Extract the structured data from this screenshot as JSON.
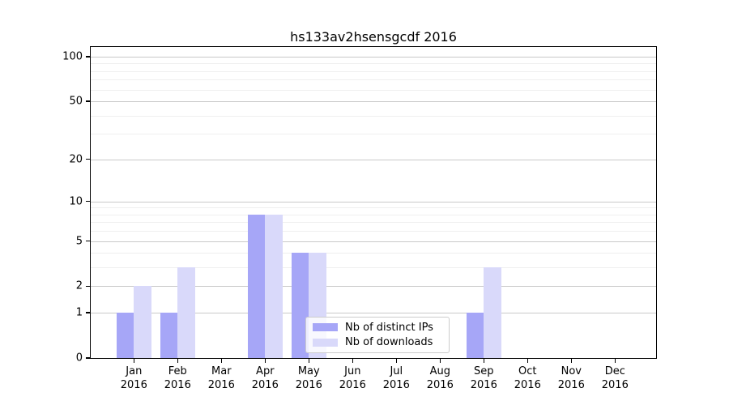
{
  "title": "hs133av2hsensgcdf 2016",
  "chart_data": {
    "type": "bar",
    "title": "hs133av2hsensgcdf 2016",
    "categories": [
      "Jan 2016",
      "Feb 2016",
      "Mar 2016",
      "Apr 2016",
      "May 2016",
      "Jun 2016",
      "Jul 2016",
      "Aug 2016",
      "Sep 2016",
      "Oct 2016",
      "Nov 2016",
      "Dec 2016"
    ],
    "series": [
      {
        "name": "Nb of distinct IPs",
        "color": "#a6a6f7",
        "values": [
          1,
          1,
          0,
          8,
          4,
          0,
          0,
          0,
          1,
          0,
          0,
          0
        ]
      },
      {
        "name": "Nb of downloads",
        "color": "#d9d9fa",
        "values": [
          2,
          3,
          0,
          8,
          4,
          0,
          0,
          0,
          3,
          0,
          0,
          0
        ]
      }
    ],
    "xlabel": "",
    "ylabel": "",
    "yscale": "log1p",
    "ylim": [
      0,
      116
    ],
    "yticks": [
      100,
      50,
      20,
      10,
      5,
      2,
      1,
      0
    ],
    "minor_yticks": [
      3,
      4,
      6,
      7,
      8,
      9,
      30,
      40,
      60,
      70,
      80,
      90
    ],
    "grid": "horizontal",
    "legend_position": "lower center"
  },
  "legend": {
    "items": [
      {
        "label": "Nb of distinct IPs",
        "color": "#a6a6f7"
      },
      {
        "label": "Nb of downloads",
        "color": "#d9d9fa"
      }
    ]
  }
}
